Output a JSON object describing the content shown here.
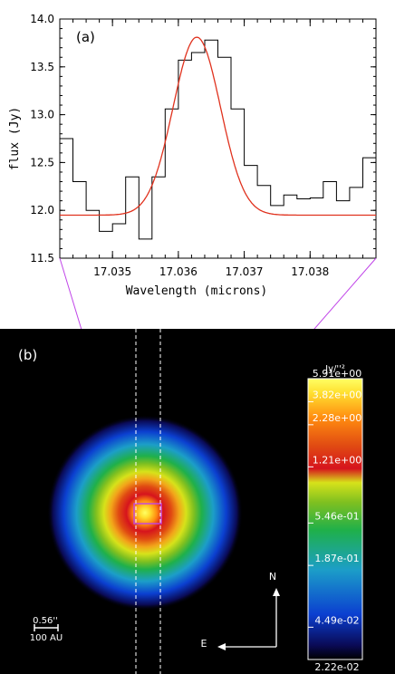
{
  "chart_data": [
    {
      "type": "line",
      "panel_label": "(a)",
      "xlabel": "Wavelength (microns)",
      "ylabel": "flux (Jy)",
      "xlim": [
        17.0342,
        17.039
      ],
      "ylim": [
        11.5,
        14.0
      ],
      "x_ticks": [
        17.035,
        17.036,
        17.037,
        17.038
      ],
      "x_tick_labels": [
        "17.035",
        "17.036",
        "17.037",
        "17.038"
      ],
      "y_ticks": [
        11.5,
        12.0,
        12.5,
        13.0,
        13.5,
        14.0
      ],
      "y_tick_labels": [
        "11.5",
        "12.0",
        "12.5",
        "13.0",
        "13.5",
        "14.0"
      ],
      "grid": false,
      "series": [
        {
          "kind": "step",
          "color": "#000000",
          "x": [
            17.0342,
            17.0344,
            17.0346,
            17.0348,
            17.035,
            17.0352,
            17.0354,
            17.0356,
            17.0358,
            17.036,
            17.0362,
            17.0364,
            17.0366,
            17.0368,
            17.037,
            17.0372,
            17.0374,
            17.0376,
            17.0378,
            17.038,
            17.0382,
            17.0384,
            17.0386,
            17.0388
          ],
          "y": [
            12.75,
            12.3,
            12.0,
            11.78,
            11.86,
            12.35,
            11.7,
            12.35,
            13.06,
            13.57,
            13.65,
            13.78,
            13.6,
            13.06,
            12.47,
            12.26,
            12.05,
            12.16,
            12.12,
            12.13,
            12.3,
            12.1,
            12.24,
            12.55
          ]
        },
        {
          "kind": "gaussian_fit",
          "color": "#e0321e",
          "baseline": 11.95,
          "amplitude": 1.86,
          "center": 17.03628,
          "sigma": 0.00036
        }
      ]
    },
    {
      "type": "heatmap",
      "panel_label": "(b)",
      "colorbar_title": "Jy/''²",
      "colorbar_ticks": [
        "5.91e+00",
        "3.82e+00",
        "2.28e+00",
        "1.21e+00",
        "5.46e-01",
        "1.87e-01",
        "4.49e-02",
        "2.22e-02"
      ],
      "colorbar_tick_fractions": [
        1.0,
        0.918,
        0.836,
        0.686,
        0.486,
        0.335,
        0.115,
        0.0
      ],
      "scale_bar_top": "0.56''",
      "scale_bar_bottom": "100 AU",
      "compass_north": "N",
      "compass_east": "E",
      "colors": [
        "#0a0a55",
        "#0b3fd0",
        "#1c9ec8",
        "#1fb04a",
        "#7fc020",
        "#d7e21a",
        "#f2a51a",
        "#e04a12",
        "#d6131d",
        "#ff8c10",
        "#ffe030",
        "#ffff64"
      ]
    }
  ]
}
